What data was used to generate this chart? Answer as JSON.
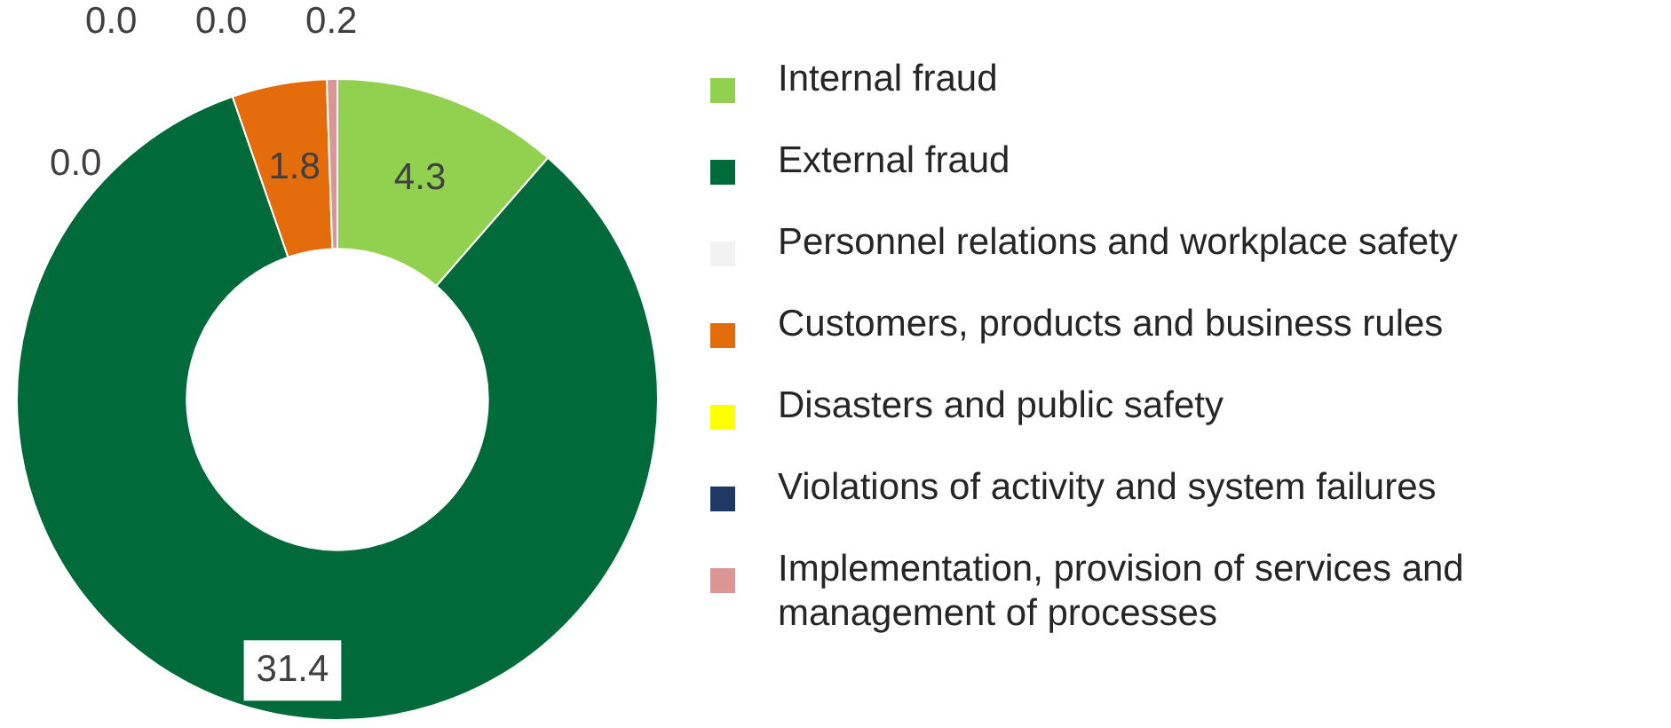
{
  "chart_data": {
    "type": "donut",
    "categories": [
      "Internal fraud",
      "External fraud",
      "Personnel relations and workplace safety",
      "Customers, products and business rules",
      "Disasters and public safety",
      "Violations of activity and system failures",
      "Implementation, provision of services and management of processes"
    ],
    "values": [
      4.3,
      31.4,
      0.0,
      1.8,
      0.0,
      0.0,
      0.2
    ],
    "colors": [
      "#92d050",
      "#006a3a",
      "#f2f2f2",
      "#e46c0a",
      "#ffff00",
      "#1f3864",
      "#d99694"
    ],
    "value_labels": [
      "4.3",
      "31.4",
      "0.0",
      "1.8",
      "0.0",
      "0.0",
      "0.2"
    ],
    "legend": "right"
  }
}
